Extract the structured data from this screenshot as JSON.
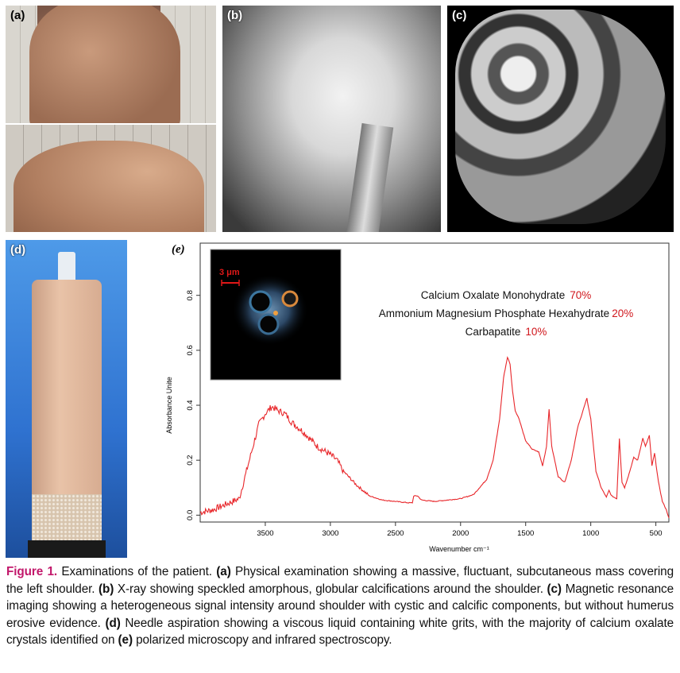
{
  "panels": {
    "a": "(a)",
    "b": "(b)",
    "c": "(c)",
    "d": "(d)",
    "e": "(e)"
  },
  "inset": {
    "scale_label": "3 μm"
  },
  "chart_data": {
    "type": "line",
    "xlabel": "Wavenumber cm⁻¹",
    "ylabel": "Absorbance Unite",
    "xlim": [
      4000,
      400
    ],
    "ylim": [
      -0.025,
      0.99
    ],
    "x_reversed": true,
    "xticks": [
      3500,
      3000,
      2500,
      2000,
      1500,
      1000,
      500
    ],
    "xtick_labels": [
      "3500",
      "3000",
      "2500",
      "2000",
      "1500",
      "1000",
      "500"
    ],
    "yticks": [
      0.0,
      0.2,
      0.4,
      0.6,
      0.8
    ],
    "ytick_labels": [
      "0.0",
      "0.2",
      "0.4",
      "0.6",
      "0.8"
    ],
    "grid": false,
    "line_color": "#e8262a",
    "annotations": [
      {
        "text": "Calcium Oxalate Monohydrate",
        "value": "70%"
      },
      {
        "text": "Ammonium Magnesium Phosphate Hexahydrate",
        "value": "20%"
      },
      {
        "text": "Carbapatite",
        "value": "10%"
      }
    ],
    "annotation_value_color": "#d0161c",
    "x": [
      4000,
      3900,
      3800,
      3700,
      3650,
      3600,
      3550,
      3500,
      3450,
      3400,
      3350,
      3300,
      3200,
      3100,
      3000,
      2950,
      2900,
      2800,
      2700,
      2600,
      2500,
      2400,
      2370,
      2360,
      2330,
      2300,
      2200,
      2100,
      2000,
      1900,
      1800,
      1750,
      1700,
      1670,
      1640,
      1620,
      1600,
      1580,
      1550,
      1500,
      1450,
      1400,
      1370,
      1340,
      1320,
      1300,
      1250,
      1200,
      1150,
      1100,
      1060,
      1030,
      1000,
      960,
      920,
      880,
      860,
      840,
      800,
      780,
      760,
      740,
      700,
      670,
      640,
      600,
      580,
      550,
      530,
      510,
      480,
      450,
      420,
      400
    ],
    "y": [
      0.01,
      0.02,
      0.04,
      0.06,
      0.15,
      0.24,
      0.33,
      0.37,
      0.395,
      0.38,
      0.37,
      0.34,
      0.3,
      0.25,
      0.22,
      0.2,
      0.16,
      0.11,
      0.07,
      0.055,
      0.05,
      0.045,
      0.045,
      0.07,
      0.07,
      0.055,
      0.05,
      0.055,
      0.06,
      0.075,
      0.13,
      0.2,
      0.35,
      0.5,
      0.575,
      0.55,
      0.45,
      0.38,
      0.35,
      0.27,
      0.24,
      0.23,
      0.18,
      0.25,
      0.385,
      0.25,
      0.14,
      0.12,
      0.2,
      0.32,
      0.38,
      0.425,
      0.35,
      0.16,
      0.1,
      0.065,
      0.09,
      0.07,
      0.06,
      0.28,
      0.12,
      0.1,
      0.16,
      0.21,
      0.2,
      0.28,
      0.25,
      0.29,
      0.18,
      0.225,
      0.12,
      0.05,
      0.02,
      -0.01
    ]
  },
  "caption": {
    "figure_label": "Figure 1.",
    "intro": " Examinations of the patient. ",
    "a_label": "(a)",
    "a_text": " Physical examination showing a massive, fluctuant, subcutaneous mass covering the left shoulder. ",
    "b_label": "(b)",
    "b_text": " X-ray showing speckled amorphous, globular calcifications around the shoulder. ",
    "c_label": "(c)",
    "c_text": " Magnetic resonance imaging showing a heterogeneous signal intensity around shoulder with cystic and calcific components, but without humerus erosive evidence. ",
    "d_label": "(d)",
    "d_text": " Needle aspiration showing a viscous liquid containing white grits, with the majority of calcium oxalate crystals identified on ",
    "e_label": "(e)",
    "e_text": " polarized microscopy and infrared spectroscopy."
  }
}
